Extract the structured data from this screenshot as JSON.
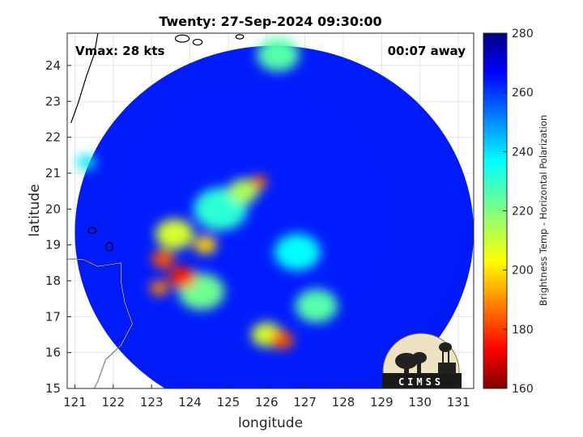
{
  "chart_data": {
    "type": "heatmap",
    "title": "Twenty: 27-Sep-2024 09:30:00",
    "xlabel": "longitude",
    "ylabel": "latitude",
    "xlim": [
      120.8,
      131.4
    ],
    "ylim": [
      15,
      24.9
    ],
    "xticks": [
      121,
      122,
      123,
      124,
      125,
      126,
      127,
      128,
      129,
      130,
      131
    ],
    "yticks": [
      15,
      16,
      17,
      18,
      19,
      20,
      21,
      22,
      23,
      24
    ],
    "grid": true,
    "annotations": {
      "vmax": "Vmax: 28 kts",
      "away": "00:07 away"
    },
    "colorbar": {
      "label": "Brightness Temp - Horizontal Polarization",
      "range": [
        160,
        280
      ],
      "ticks": [
        160,
        180,
        200,
        220,
        240,
        260,
        280
      ],
      "colormap": "jet"
    },
    "swath": {
      "center_lon": 126.2,
      "center_lat": 19.35,
      "radius_deg": 5.2,
      "background_value": 262
    },
    "features": [
      {
        "lon": 123.3,
        "lat": 18.6,
        "value": 185,
        "radius_deg": 0.3
      },
      {
        "lon": 123.8,
        "lat": 18.1,
        "value": 178,
        "radius_deg": 0.35
      },
      {
        "lon": 123.2,
        "lat": 17.8,
        "value": 190,
        "radius_deg": 0.25
      },
      {
        "lon": 124.4,
        "lat": 19.0,
        "value": 200,
        "radius_deg": 0.3
      },
      {
        "lon": 123.6,
        "lat": 19.3,
        "value": 210,
        "radius_deg": 0.5
      },
      {
        "lon": 125.8,
        "lat": 20.75,
        "value": 188,
        "radius_deg": 0.22
      },
      {
        "lon": 125.4,
        "lat": 20.5,
        "value": 215,
        "radius_deg": 0.4
      },
      {
        "lon": 126.4,
        "lat": 16.35,
        "value": 185,
        "radius_deg": 0.3
      },
      {
        "lon": 126.0,
        "lat": 16.5,
        "value": 210,
        "radius_deg": 0.4
      },
      {
        "lon": 127.3,
        "lat": 17.3,
        "value": 225,
        "radius_deg": 0.55
      },
      {
        "lon": 126.3,
        "lat": 24.3,
        "value": 225,
        "radius_deg": 0.55
      },
      {
        "lon": 124.3,
        "lat": 17.7,
        "value": 222,
        "radius_deg": 0.6
      },
      {
        "lon": 124.8,
        "lat": 20.0,
        "value": 230,
        "radius_deg": 0.7
      },
      {
        "lon": 126.8,
        "lat": 18.8,
        "value": 235,
        "radius_deg": 0.6
      },
      {
        "lon": 121.3,
        "lat": 21.3,
        "value": 238,
        "radius_deg": 0.25
      }
    ],
    "logo": "CIMSS"
  }
}
